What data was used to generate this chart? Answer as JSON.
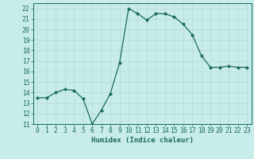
{
  "xlabel": "Humidex (Indice chaleur)",
  "ylabel": "",
  "x": [
    0,
    1,
    2,
    3,
    4,
    5,
    6,
    7,
    8,
    9,
    10,
    11,
    12,
    13,
    14,
    15,
    16,
    17,
    18,
    19,
    20,
    21,
    22,
    23
  ],
  "y": [
    13.5,
    13.5,
    14.0,
    14.3,
    14.2,
    13.4,
    11.0,
    12.3,
    13.9,
    16.8,
    22.0,
    21.5,
    20.9,
    21.5,
    21.5,
    21.2,
    20.5,
    19.5,
    17.5,
    16.4,
    16.4,
    16.5,
    16.4,
    16.4
  ],
  "line_color": "#1a6b5a",
  "marker": "D",
  "marker_size": 2,
  "bg_color": "#c8ecea",
  "grid_color": "#b5d8d4",
  "ylim": [
    11,
    22.5
  ],
  "xlim": [
    -0.5,
    23.5
  ],
  "yticks": [
    11,
    12,
    13,
    14,
    15,
    16,
    17,
    18,
    19,
    20,
    21,
    22
  ],
  "xticks": [
    0,
    1,
    2,
    3,
    4,
    5,
    6,
    7,
    8,
    9,
    10,
    11,
    12,
    13,
    14,
    15,
    16,
    17,
    18,
    19,
    20,
    21,
    22,
    23
  ],
  "label_fontsize": 6.5,
  "tick_fontsize": 5.8
}
